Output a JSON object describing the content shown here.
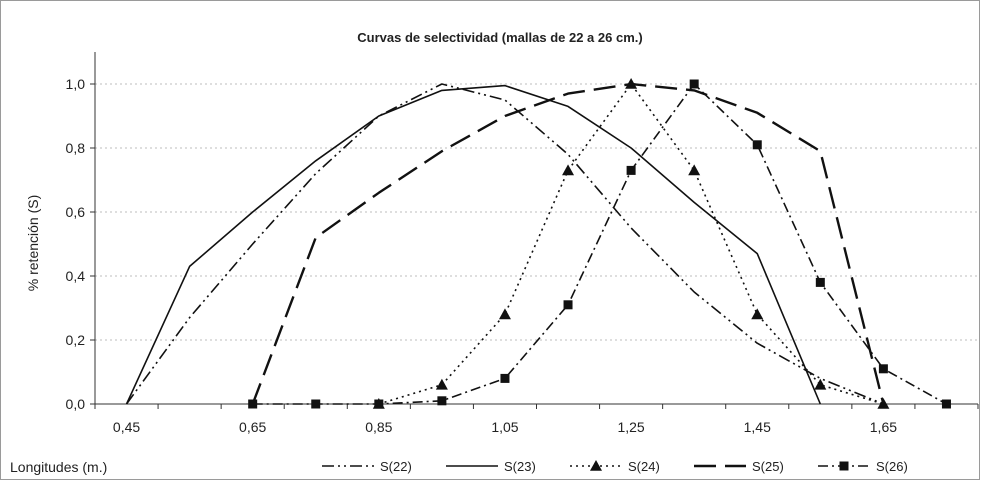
{
  "chart_data": {
    "type": "line",
    "title": "Curvas de selectividad (mallas de 22 a 26 cm.)",
    "xlabel": "Longitudes (m.)",
    "ylabel": "% retención (S)",
    "xlim": [
      0.4,
      1.8
    ],
    "ylim": [
      0,
      1.1
    ],
    "x_ticks": [
      "0,45",
      "0,65",
      "0,85",
      "1,05",
      "1,25",
      "1,45",
      "1,65"
    ],
    "y_ticks": [
      "0,0",
      "0,2",
      "0,4",
      "0,6",
      "0,8",
      "1,0"
    ],
    "grid": true,
    "legend_position": "bottom",
    "series": [
      {
        "name": "S(22)",
        "style": "dashdotdot",
        "marker": "none",
        "x": [
          0.45,
          0.55,
          0.65,
          0.75,
          0.85,
          0.95,
          1.05,
          1.15,
          1.25,
          1.35,
          1.45,
          1.55,
          1.65
        ],
        "y": [
          0.0,
          0.27,
          0.5,
          0.72,
          0.9,
          1.0,
          0.95,
          0.78,
          0.55,
          0.35,
          0.19,
          0.08,
          0.0
        ]
      },
      {
        "name": "S(23)",
        "style": "solid",
        "marker": "none",
        "x": [
          0.45,
          0.55,
          0.65,
          0.75,
          0.85,
          0.95,
          1.05,
          1.15,
          1.25,
          1.35,
          1.45,
          1.55
        ],
        "y": [
          0.0,
          0.43,
          0.6,
          0.76,
          0.9,
          0.98,
          0.995,
          0.93,
          0.8,
          0.63,
          0.47,
          0.0
        ]
      },
      {
        "name": "S(24)",
        "style": "dotted",
        "marker": "triangle",
        "x": [
          0.85,
          0.95,
          1.05,
          1.15,
          1.25,
          1.35,
          1.45,
          1.55,
          1.65
        ],
        "y": [
          0.0,
          0.06,
          0.28,
          0.73,
          1.0,
          0.73,
          0.28,
          0.06,
          0.0
        ]
      },
      {
        "name": "S(25)",
        "style": "longdash",
        "marker": "none",
        "x": [
          0.65,
          0.75,
          0.85,
          0.95,
          1.05,
          1.15,
          1.25,
          1.35,
          1.45,
          1.55,
          1.65
        ],
        "y": [
          0.0,
          0.52,
          0.66,
          0.79,
          0.9,
          0.97,
          1.0,
          0.98,
          0.91,
          0.79,
          0.0
        ]
      },
      {
        "name": "S(26)",
        "style": "dashdot",
        "marker": "square",
        "x": [
          0.65,
          0.75,
          0.85,
          0.95,
          1.05,
          1.15,
          1.25,
          1.35,
          1.45,
          1.55,
          1.65,
          1.75
        ],
        "y": [
          0.0,
          0.0,
          0.0,
          0.01,
          0.08,
          0.31,
          0.73,
          1.0,
          0.81,
          0.38,
          0.11,
          0.0
        ]
      }
    ]
  }
}
